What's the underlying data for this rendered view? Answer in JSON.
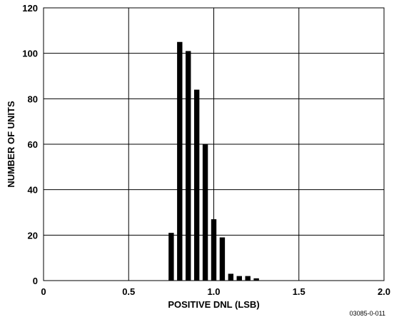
{
  "chart_data": {
    "type": "bar",
    "title": "",
    "xlabel": "POSITIVE DNL (LSB)",
    "ylabel": "NUMBER OF UNITS",
    "xlim": [
      0,
      2.0
    ],
    "ylim": [
      0,
      120
    ],
    "grid": true,
    "x_tick_labels": [
      "0",
      "0.5",
      "1.0",
      "1.5",
      "2.0"
    ],
    "y_tick_labels": [
      "0",
      "20",
      "40",
      "60",
      "80",
      "100",
      "120"
    ],
    "bin_width": 0.05,
    "bins": [
      {
        "x": 0.75,
        "count": 21
      },
      {
        "x": 0.8,
        "count": 105
      },
      {
        "x": 0.85,
        "count": 101
      },
      {
        "x": 0.9,
        "count": 84
      },
      {
        "x": 0.95,
        "count": 60
      },
      {
        "x": 1.0,
        "count": 27
      },
      {
        "x": 1.05,
        "count": 19
      },
      {
        "x": 1.1,
        "count": 3
      },
      {
        "x": 1.15,
        "count": 2
      },
      {
        "x": 1.2,
        "count": 2
      },
      {
        "x": 1.25,
        "count": 1
      }
    ]
  },
  "figure_id": "03085-0-011"
}
